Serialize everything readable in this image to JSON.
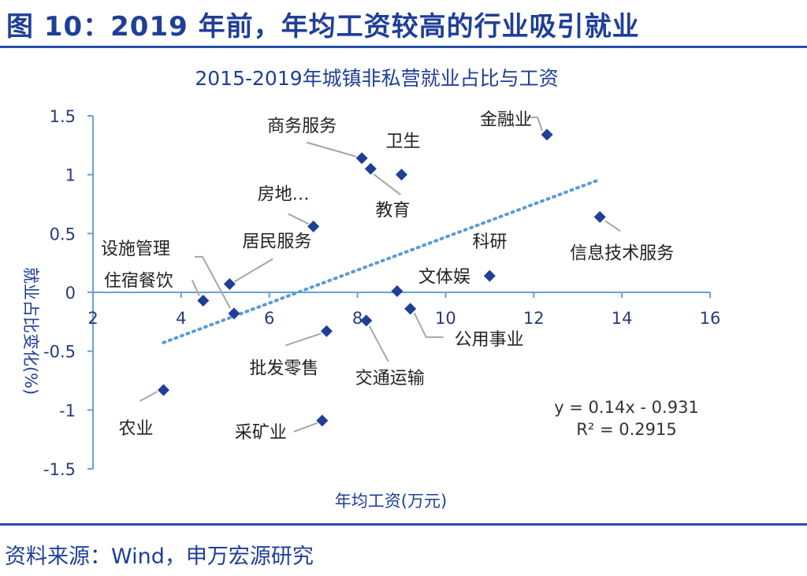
{
  "figure": {
    "title": "图 10：2019 年前，年均工资较高的行业吸引就业",
    "source": "资料来源：Wind，申万宏源研究"
  },
  "chart_data": {
    "type": "scatter",
    "title": "2015-2019年城镇非私营就业占比与工资",
    "xlabel": "年均工资(万元)",
    "ylabel": "就业占比变化(%)",
    "xlim": [
      2,
      16
    ],
    "ylim": [
      -1.5,
      1.5
    ],
    "xticks": [
      2,
      4,
      6,
      8,
      10,
      12,
      14,
      16
    ],
    "yticks": [
      1.5,
      1,
      0.5,
      0,
      -0.5,
      -1,
      -1.5
    ],
    "ytick_labels": [
      "1.5",
      "1",
      "0.5",
      "0",
      "-0.5",
      "-1",
      "-1.5"
    ],
    "marker_color": "#1f3f97",
    "trend_color": "#5b9bd5",
    "points": [
      {
        "name": "农业",
        "x": 3.6,
        "y": -0.83
      },
      {
        "name": "住宿餐饮",
        "x": 4.5,
        "y": -0.07
      },
      {
        "name": "设施管理",
        "x": 5.2,
        "y": -0.18
      },
      {
        "name": "居民服务",
        "x": 5.1,
        "y": 0.07
      },
      {
        "name": "房地…",
        "x": 7.0,
        "y": 0.56
      },
      {
        "name": "采矿业",
        "x": 7.2,
        "y": -1.09
      },
      {
        "name": "批发零售",
        "x": 7.3,
        "y": -0.33
      },
      {
        "name": "交通运输",
        "x": 8.2,
        "y": -0.24
      },
      {
        "name": "商务服务",
        "x": 8.1,
        "y": 1.14
      },
      {
        "name": "教育",
        "x": 8.3,
        "y": 1.05
      },
      {
        "name": "卫生",
        "x": 9.0,
        "y": 1.0
      },
      {
        "name": "文体娱",
        "x": 8.9,
        "y": 0.01
      },
      {
        "name": "公用事业",
        "x": 9.2,
        "y": -0.14
      },
      {
        "name": "科研",
        "x": 11.0,
        "y": 0.14
      },
      {
        "name": "金融业",
        "x": 12.3,
        "y": 1.34
      },
      {
        "name": "信息技术服务",
        "x": 13.5,
        "y": 0.64
      }
    ],
    "trendline": {
      "slope": 0.14,
      "intercept": -0.931,
      "x_range": [
        3.6,
        13.5
      ]
    },
    "equation": "y = 0.14x - 0.931",
    "r_squared": "R² = 0.2915",
    "grid": false
  }
}
